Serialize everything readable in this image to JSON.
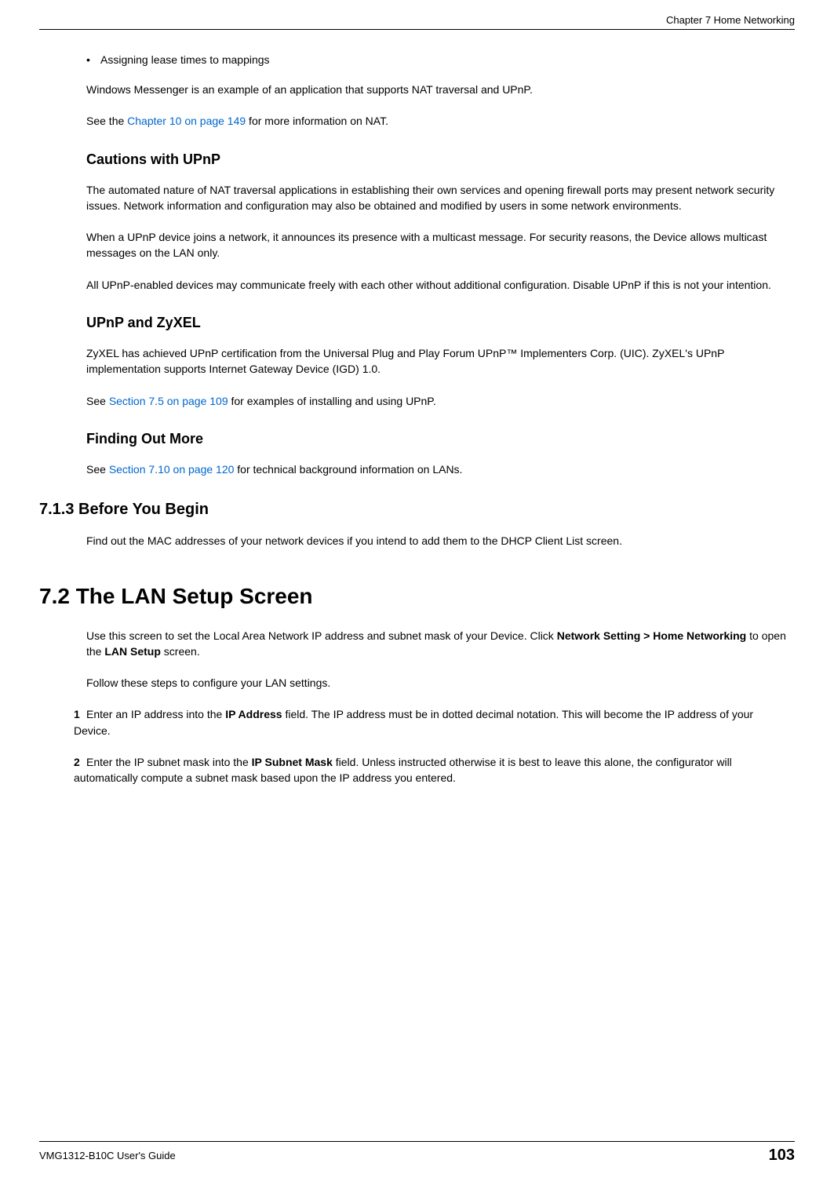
{
  "header": {
    "chapter": "Chapter 7 Home Networking"
  },
  "body": {
    "bullet1": "Assigning lease times to mappings",
    "para1": "Windows Messenger is an example of an application that supports NAT traversal and UPnP.",
    "para2_prefix": "See the ",
    "para2_link": "Chapter 10 on page 149",
    "para2_suffix": " for more information on NAT.",
    "h3_1": "Cautions with UPnP",
    "para3": "The automated nature of NAT traversal applications in establishing their own services and opening firewall ports may present network security issues. Network information and configuration may also be obtained and modified by users in some network environments.",
    "para4": "When a UPnP device joins a network, it announces its presence with a multicast message. For security reasons, the Device allows multicast messages on the LAN only.",
    "para5": "All UPnP-enabled devices may communicate freely with each other without additional configuration. Disable UPnP if this is not your intention.",
    "h3_2": "UPnP and ZyXEL",
    "para6": "ZyXEL has achieved UPnP certification from the Universal Plug and Play Forum UPnP™ Implementers Corp. (UIC). ZyXEL's UPnP implementation supports Internet Gateway Device (IGD) 1.0.",
    "para7_prefix": "See ",
    "para7_link": "Section 7.5 on page 109",
    "para7_suffix": " for examples of installing and using UPnP.",
    "h3_3": "Finding Out More",
    "para8_prefix": "See ",
    "para8_link": "Section 7.10 on page 120",
    "para8_suffix": " for technical background information on LANs.",
    "h2_1": "7.1.3  Before You Begin",
    "para9": "Find out the MAC addresses of your network devices if you intend to add them to the DHCP Client List screen.",
    "h1_1": "7.2  The LAN Setup Screen",
    "para10_a": "Use this screen to set the Local Area Network IP address and subnet mask of your Device. Click ",
    "para10_bold1": "Network Setting > Home Networking",
    "para10_b": " to open the ",
    "para10_bold2": "LAN Setup",
    "para10_c": " screen.",
    "para11": "Follow these steps to configure your LAN settings.",
    "step1_num": "1",
    "step1_a": "Enter an IP address into the ",
    "step1_bold": "IP Address",
    "step1_b": " field. The IP address must be in dotted decimal notation. This will become the IP address of your Device.",
    "step2_num": "2",
    "step2_a": "Enter the IP subnet mask into the ",
    "step2_bold": "IP Subnet Mask",
    "step2_b": " field. Unless instructed otherwise it is best to leave this alone, the configurator will automatically compute a subnet mask based upon the IP address you entered."
  },
  "footer": {
    "guide": "VMG1312-B10C User's Guide",
    "pagenum": "103"
  },
  "styling": {
    "link_color": "#0066cc",
    "text_color": "#000000",
    "background_color": "#ffffff",
    "body_font": "Verdana",
    "heading_font": "Arial",
    "body_fontsize": 14,
    "h3_fontsize": 18,
    "h2_fontsize": 20,
    "h1_fontsize": 28,
    "pagenum_fontsize": 20
  }
}
